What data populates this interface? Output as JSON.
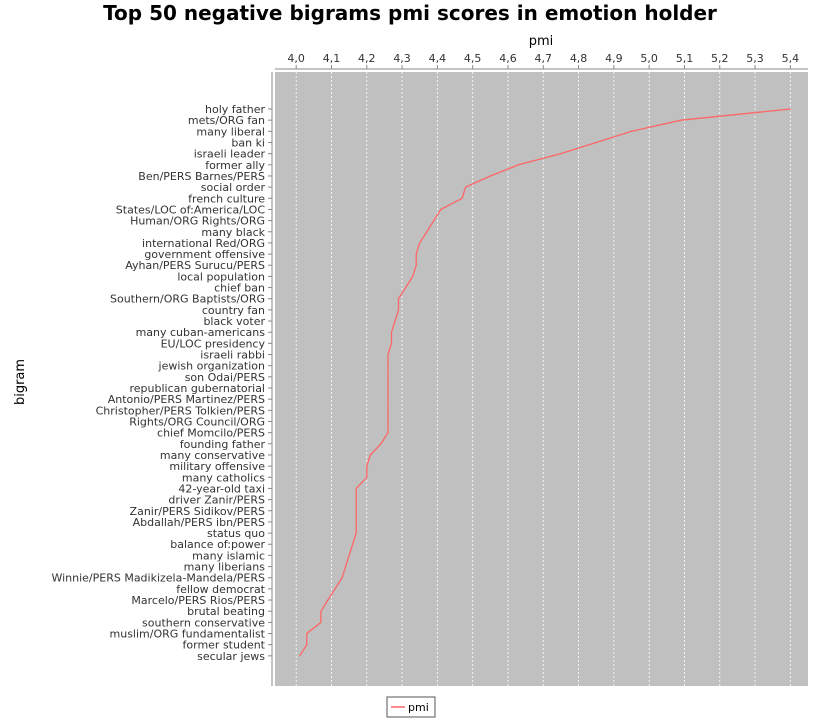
{
  "chart_data": {
    "type": "line",
    "title": "Top 50 negative bigrams pmi scores in emotion holder",
    "xlabel": "pmi",
    "ylabel": "bigram",
    "xlim": [
      3.94,
      5.45
    ],
    "xticks": [
      "4,0",
      "4,1",
      "4,2",
      "4,3",
      "4,4",
      "4,5",
      "4,6",
      "4,7",
      "4,8",
      "4,9",
      "5,0",
      "5,1",
      "5,2",
      "5,3",
      "5,4"
    ],
    "x_axis_position": "top",
    "grid": true,
    "background_color": "#c0c0c0",
    "legend_position": "bottom",
    "series": [
      {
        "name": "pmi",
        "color": "#ff6666",
        "categories": [
          "holy father",
          "mets/ORG fan",
          "many liberal",
          "ban ki",
          "israeli leader",
          "former ally",
          "Ben/PERS Barnes/PERS",
          "social order",
          "french culture",
          "States/LOC of:America/LOC",
          "Human/ORG Rights/ORG",
          "many black",
          "international Red/ORG",
          "government offensive",
          "Ayhan/PERS Surucu/PERS",
          "local population",
          "chief ban",
          "Southern/ORG Baptists/ORG",
          "country fan",
          "black voter",
          "many cuban-americans",
          "EU/LOC presidency",
          "israeli rabbi",
          "jewish organization",
          "son Odai/PERS",
          "republican gubernatorial",
          "Antonio/PERS Martinez/PERS",
          "Christopher/PERS Tolkien/PERS",
          "Rights/ORG Council/ORG",
          "chief Momcilo/PERS",
          "founding father",
          "many conservative",
          "military offensive",
          "many catholics",
          "42-year-old taxi",
          "driver Zanir/PERS",
          "Zanir/PERS Sidikov/PERS",
          "Abdallah/PERS ibn/PERS",
          "status quo",
          "balance of:power",
          "many islamic",
          "many liberians",
          "Winnie/PERS Madikizela-Mandela/PERS",
          "fellow democrat",
          "Marcelo/PERS Rios/PERS",
          "brutal beating",
          "southern conservative",
          "muslim/ORG fundamentalist",
          "former student",
          "secular jews"
        ],
        "values": [
          5.4,
          5.09,
          4.95,
          4.85,
          4.75,
          4.63,
          4.55,
          4.48,
          4.47,
          4.41,
          4.39,
          4.37,
          4.35,
          4.34,
          4.34,
          4.33,
          4.31,
          4.29,
          4.29,
          4.28,
          4.27,
          4.27,
          4.26,
          4.26,
          4.26,
          4.26,
          4.26,
          4.26,
          4.26,
          4.26,
          4.24,
          4.21,
          4.2,
          4.2,
          4.17,
          4.17,
          4.17,
          4.17,
          4.17,
          4.16,
          4.15,
          4.14,
          4.13,
          4.11,
          4.09,
          4.07,
          4.07,
          4.03,
          4.03,
          4.01
        ]
      }
    ]
  }
}
